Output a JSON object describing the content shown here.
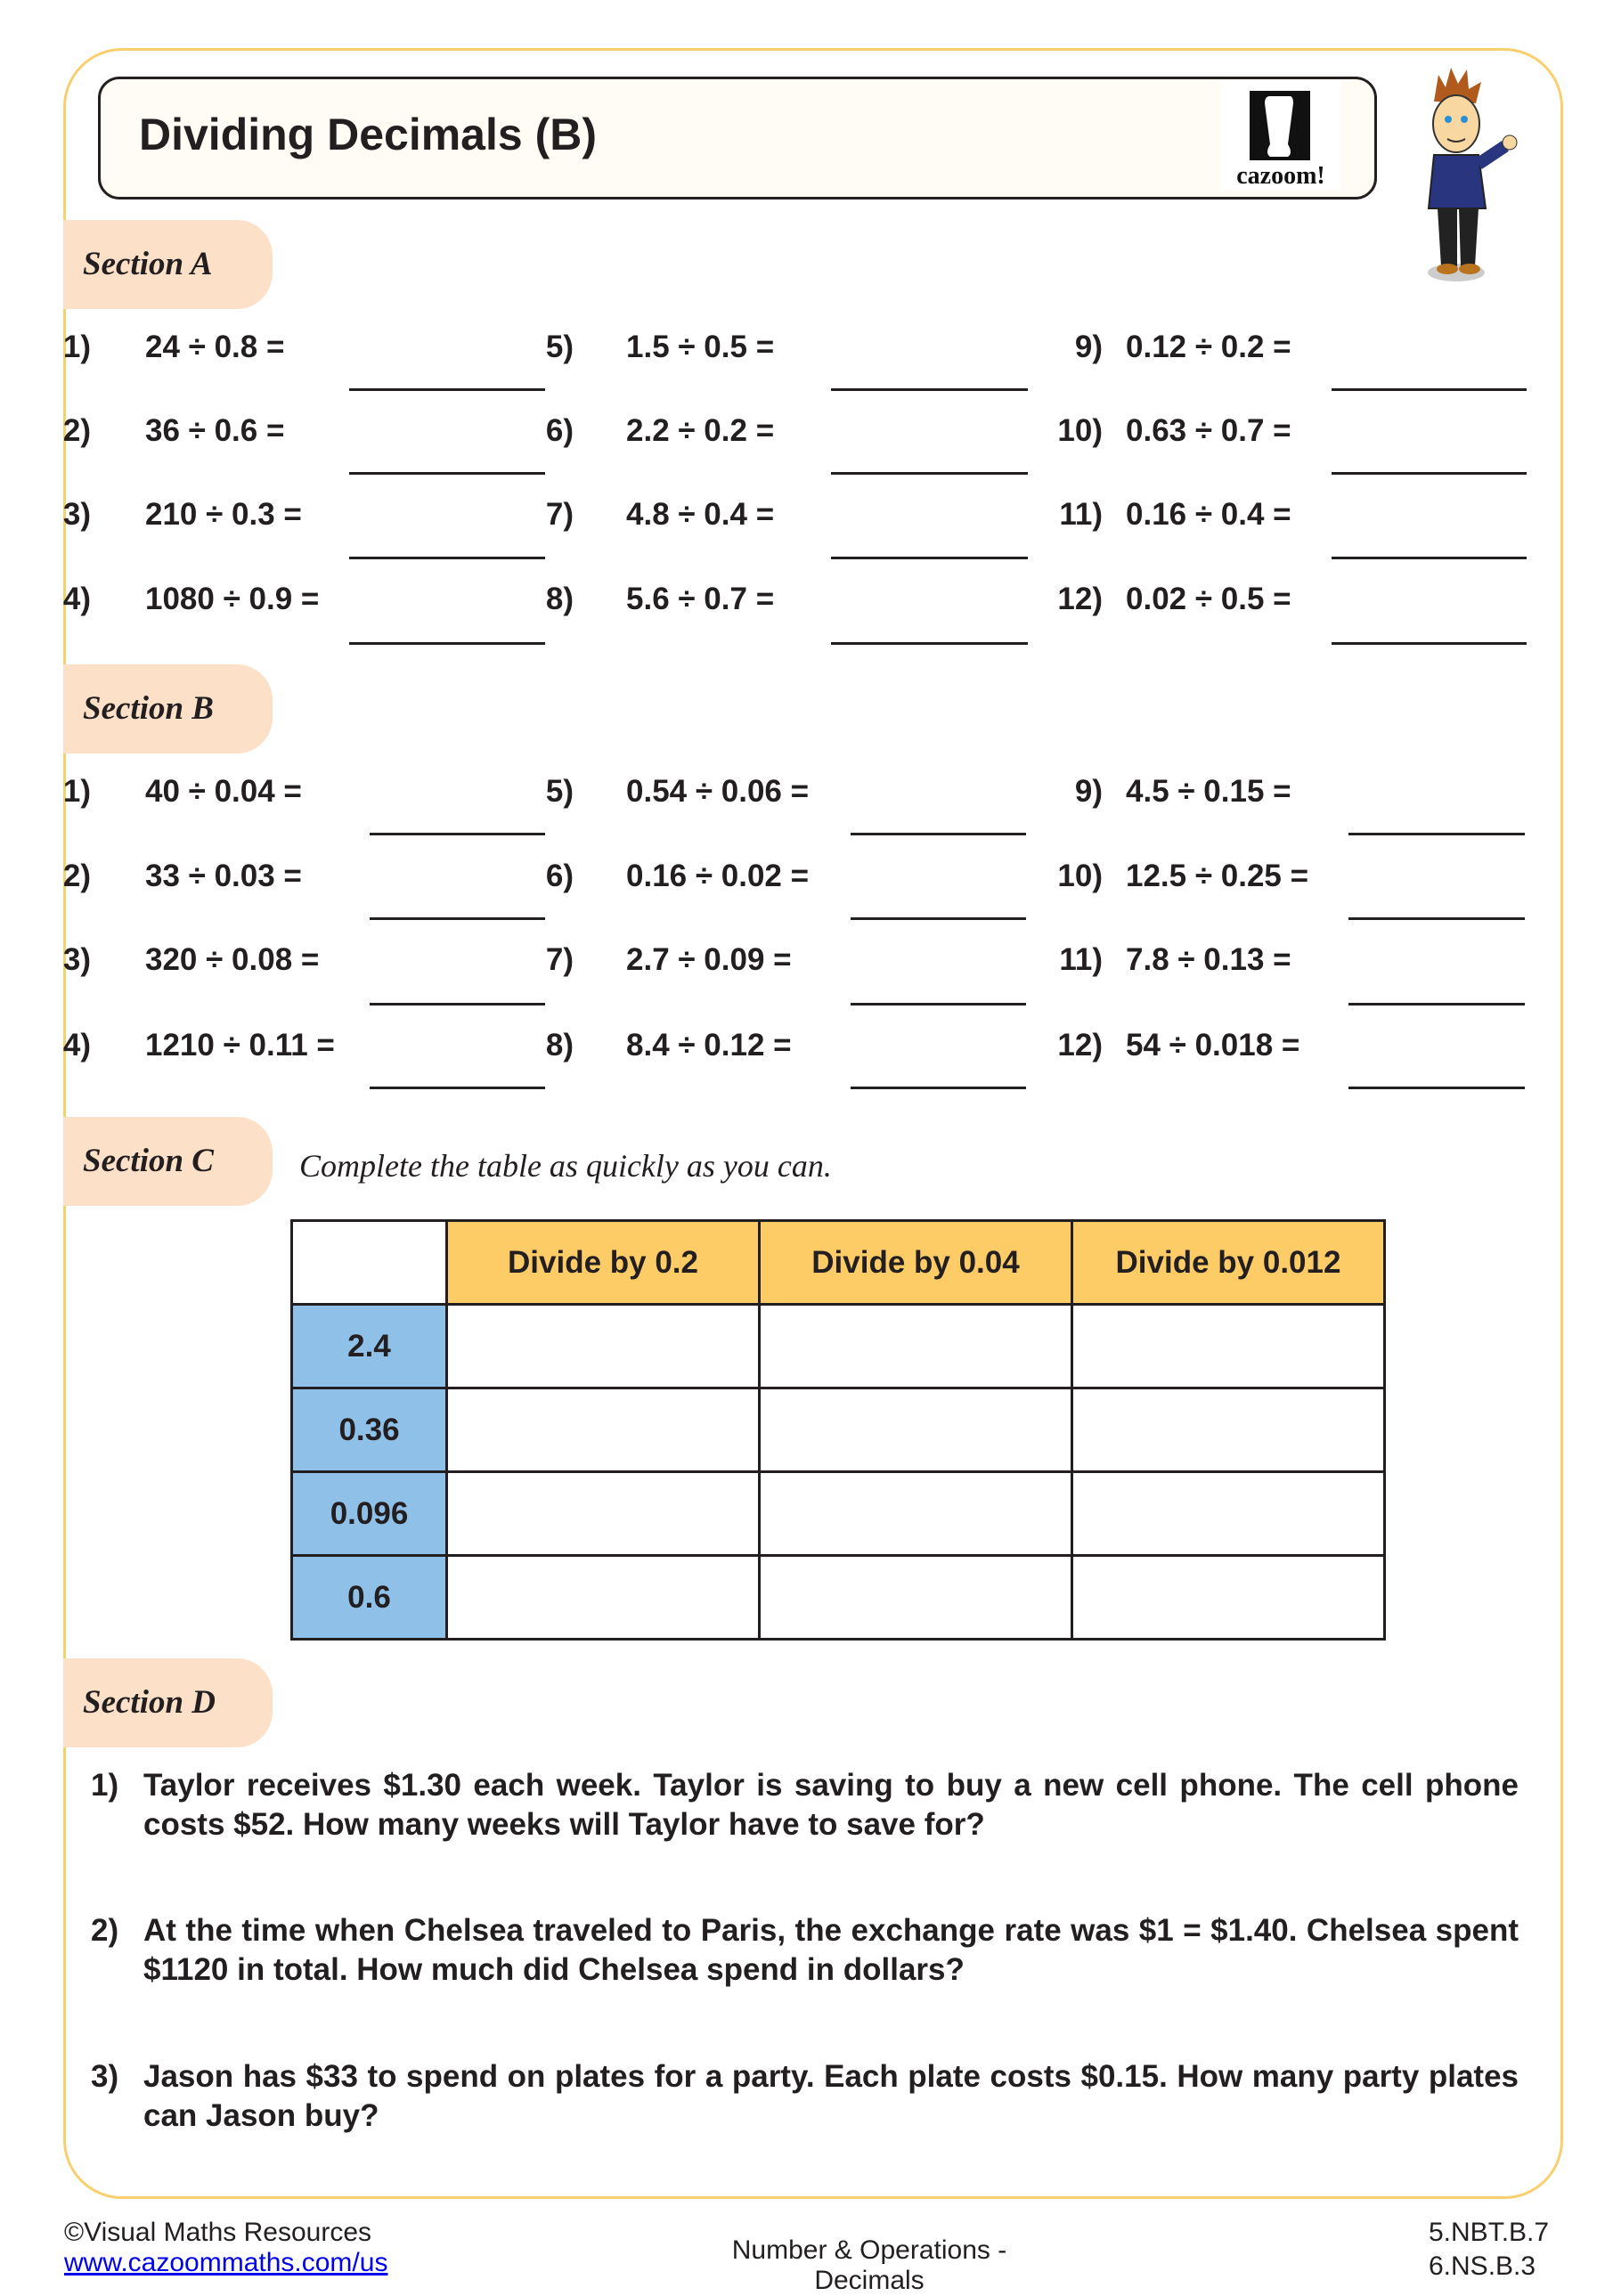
{
  "title": "Dividing Decimals (B)",
  "logo_text": "cazoom!",
  "sectionA": {
    "label": "Section A",
    "questions": [
      [
        "1)",
        "24 ÷ 0.8 ="
      ],
      [
        "2)",
        "36 ÷ 0.6 ="
      ],
      [
        "3)",
        "210 ÷ 0.3 ="
      ],
      [
        "4)",
        "1080 ÷ 0.9 ="
      ],
      [
        "5)",
        "1.5 ÷ 0.5 ="
      ],
      [
        "6)",
        "2.2 ÷ 0.2 ="
      ],
      [
        "7)",
        "4.8 ÷ 0.4 ="
      ],
      [
        "8)",
        "5.6 ÷ 0.7 ="
      ],
      [
        "9)",
        "0.12 ÷ 0.2 ="
      ],
      [
        "10)",
        "0.63 ÷ 0.7 ="
      ],
      [
        "11)",
        "0.16 ÷ 0.4 ="
      ],
      [
        "12)",
        "0.02 ÷ 0.5 ="
      ]
    ]
  },
  "sectionB": {
    "label": "Section B",
    "questions": [
      [
        "1)",
        "40 ÷ 0.04 ="
      ],
      [
        "2)",
        "33 ÷ 0.03 ="
      ],
      [
        "3)",
        "320 ÷ 0.08 ="
      ],
      [
        "4)",
        "1210 ÷ 0.11 ="
      ],
      [
        "5)",
        "0.54 ÷ 0.06 ="
      ],
      [
        "6)",
        "0.16 ÷ 0.02 ="
      ],
      [
        "7)",
        "2.7 ÷ 0.09 ="
      ],
      [
        "8)",
        "8.4 ÷ 0.12 ="
      ],
      [
        "9)",
        "4.5 ÷ 0.15 ="
      ],
      [
        "10)",
        "12.5 ÷ 0.25 ="
      ],
      [
        "11)",
        "7.8 ÷ 0.13 ="
      ],
      [
        "12)",
        "54 ÷ 0.018 ="
      ]
    ]
  },
  "sectionC": {
    "label": "Section C",
    "instruction": "Complete the table as quickly as you can.",
    "headers": [
      "Divide by 0.2",
      "Divide by 0.04",
      "Divide by 0.012"
    ],
    "rows": [
      "2.4",
      "0.36",
      "0.096",
      "0.6"
    ]
  },
  "sectionD": {
    "label": "Section D",
    "questions": [
      [
        "1)",
        "Taylor receives $1.30 each week. Taylor is saving to buy a new cell phone. The cell phone costs $52. How many weeks will Taylor have to save for?"
      ],
      [
        "2)",
        "At the time when Chelsea traveled to Paris, the exchange rate was $1 = $1.40. Chelsea spent $1120 in total. How much did Chelsea spend in dollars?"
      ],
      [
        "3)",
        "Jason has $33 to spend on plates for a party. Each plate costs $0.15. How many party plates can Jason buy?"
      ]
    ]
  },
  "footer": {
    "copyright": "©Visual Maths Resources",
    "link": "www.cazoommaths.com/us",
    "topic": "Number & Operations - Decimals",
    "standards": [
      "5.NBT.B.7",
      "6.NS.B.3"
    ]
  },
  "colors": {
    "border": "#f9cf6e",
    "tab": "#fde0c8",
    "header": "#fdcc66",
    "row_header": "#8ec0e8"
  }
}
